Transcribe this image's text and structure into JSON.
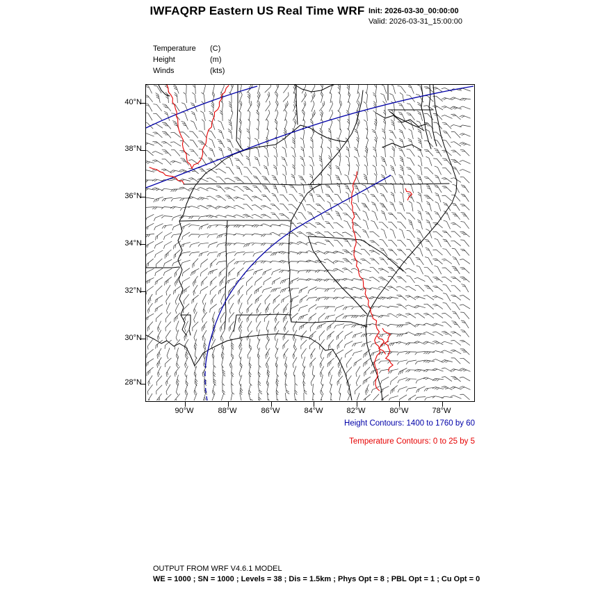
{
  "header": {
    "title": "IWFAQRP Eastern US Real Time WRF",
    "init": "Init: 2026-03-30_00:00:00",
    "valid": "Valid: 2026-03-31_15:00:00"
  },
  "legend": {
    "items": [
      {
        "param": "Temperature",
        "unit": "(C)"
      },
      {
        "param": "Height",
        "unit": "(m)"
      },
      {
        "param": "Winds",
        "unit": "(kts)"
      }
    ]
  },
  "map": {
    "lat_ticks": [
      "40°N",
      "38°N",
      "36°N",
      "34°N",
      "32°N",
      "30°N",
      "28°N"
    ],
    "lon_ticks": [
      "90°W",
      "88°W",
      "86°W",
      "84°W",
      "82°W",
      "80°W",
      "78°W"
    ],
    "colors": {
      "height_contour": "#0000A8",
      "temperature_contour": "#E60000",
      "state_boundary": "#000000",
      "wind_barb": "#1a1a1a"
    }
  },
  "captions": {
    "height": "Height Contours: 1400 to 1760 by 60",
    "temperature": "Temperature Contours: 0 to 25 by 5"
  },
  "footer": {
    "line1": "OUTPUT FROM WRF V4.6.1 MODEL",
    "line2": "WE = 1000 ; SN = 1000 ; Levels = 38 ; Dis = 1.5km ; Phys Opt = 8 ; PBL Opt = 1 ; Cu Opt = 0"
  }
}
